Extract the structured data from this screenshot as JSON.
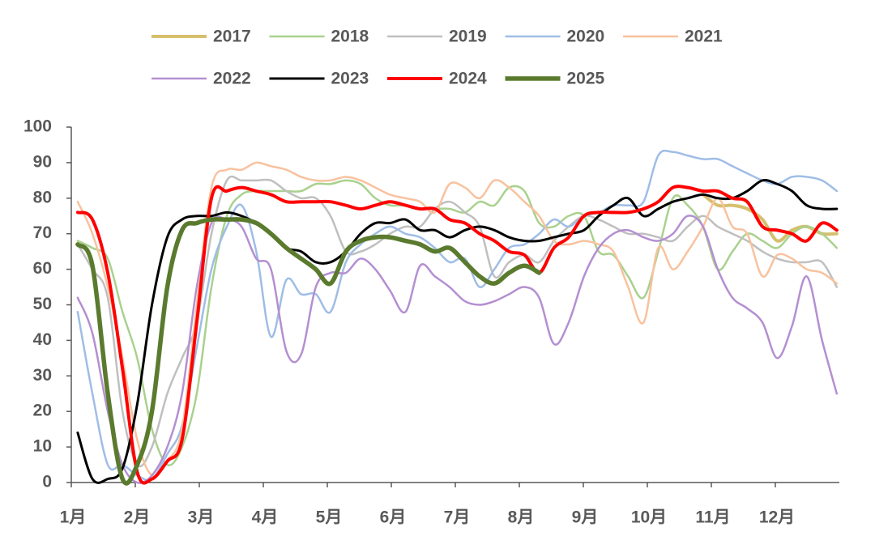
{
  "chart_data": {
    "type": "line",
    "x": [
      1.1,
      1.33,
      1.57,
      1.8,
      2.03,
      2.26,
      2.5,
      2.73,
      2.96,
      3.19,
      3.43,
      3.66,
      3.89,
      4.12,
      4.36,
      4.59,
      4.82,
      5.05,
      5.29,
      5.52,
      5.75,
      5.98,
      6.22,
      6.45,
      6.68,
      6.91,
      7.15,
      7.38,
      7.61,
      7.84,
      8.08,
      8.31,
      8.54,
      8.77,
      9.01,
      9.24,
      9.47,
      9.7,
      9.94,
      10.17,
      10.4,
      10.63,
      10.87,
      11.1,
      11.33,
      11.56,
      11.8,
      12.03,
      12.26,
      12.49,
      12.73,
      12.96
    ],
    "xlim": [
      1,
      13
    ],
    "xticks": [
      {
        "value": 1,
        "label": "1月"
      },
      {
        "value": 2,
        "label": "2月"
      },
      {
        "value": 3,
        "label": "3月"
      },
      {
        "value": 4,
        "label": "4月"
      },
      {
        "value": 5,
        "label": "5月"
      },
      {
        "value": 6,
        "label": "6月"
      },
      {
        "value": 7,
        "label": "7月"
      },
      {
        "value": 8,
        "label": "8月"
      },
      {
        "value": 9,
        "label": "9月"
      },
      {
        "value": 10,
        "label": "10月"
      },
      {
        "value": 11,
        "label": "11月"
      },
      {
        "value": 12,
        "label": "12月"
      }
    ],
    "ylim": [
      0,
      100
    ],
    "yticks": [
      0,
      10,
      20,
      30,
      40,
      50,
      60,
      70,
      80,
      90,
      100
    ],
    "grid": false,
    "legend": "top",
    "series": [
      {
        "name": "2017",
        "color": "#d6bf6d",
        "width": 4,
        "values": [
          null,
          null,
          null,
          null,
          null,
          null,
          null,
          null,
          null,
          null,
          null,
          null,
          null,
          null,
          null,
          null,
          null,
          null,
          null,
          null,
          null,
          null,
          null,
          null,
          null,
          null,
          null,
          null,
          null,
          null,
          null,
          null,
          null,
          null,
          null,
          null,
          null,
          null,
          null,
          null,
          null,
          null,
          81,
          78,
          78,
          77,
          74,
          68,
          71,
          72,
          70,
          70
        ]
      },
      {
        "name": "2018",
        "color": "#a9d18e",
        "width": 2.5,
        "values": [
          68,
          66,
          63,
          48,
          35,
          15,
          5,
          10,
          25,
          55,
          75,
          81,
          82,
          82,
          82,
          82,
          84,
          84,
          85,
          84,
          80,
          78,
          78,
          77,
          77,
          77,
          76,
          79,
          78,
          83,
          82,
          73,
          72,
          75,
          75,
          65,
          64,
          58,
          52,
          65,
          80,
          78,
          72,
          60,
          65,
          70,
          68,
          66,
          70,
          72,
          70,
          66
        ]
      },
      {
        "name": "2019",
        "color": "#bfbfbf",
        "width": 2.5,
        "values": [
          67,
          60,
          52,
          20,
          5,
          10,
          25,
          35,
          45,
          70,
          85,
          85,
          85,
          85,
          82,
          80,
          80,
          75,
          65,
          65,
          67,
          70,
          72,
          72,
          77,
          79,
          76,
          72,
          58,
          62,
          64,
          62,
          68,
          72,
          75,
          74,
          72,
          70,
          70,
          69,
          68,
          72,
          75,
          72,
          70,
          68,
          65,
          63,
          62,
          62,
          62,
          55
        ]
      },
      {
        "name": "2020",
        "color": "#9fbde6",
        "width": 2.5,
        "values": [
          48,
          25,
          5,
          5,
          2,
          1,
          8,
          16,
          38,
          60,
          72,
          78,
          65,
          41,
          57,
          53,
          53,
          48,
          62,
          67,
          70,
          72,
          70,
          69,
          66,
          62,
          63,
          55,
          60,
          66,
          67,
          70,
          74,
          72,
          75,
          76,
          78,
          78,
          79,
          92,
          93,
          92,
          91,
          91,
          89,
          87,
          85,
          84,
          86,
          86,
          85,
          82
        ]
      },
      {
        "name": "2021",
        "color": "#f8c29e",
        "width": 2.5,
        "values": [
          79,
          70,
          55,
          35,
          12,
          2,
          6,
          15,
          50,
          83,
          88,
          88,
          90,
          89,
          88,
          86,
          85,
          85,
          86,
          85,
          83,
          81,
          80,
          79,
          76,
          84,
          83,
          80,
          85,
          83,
          79,
          75,
          68,
          67,
          68,
          67,
          65,
          55,
          45,
          66,
          60,
          65,
          72,
          80,
          72,
          70,
          58,
          64,
          63,
          60,
          59,
          56
        ]
      },
      {
        "name": "2022",
        "color": "#b48fd1",
        "width": 2.5,
        "values": [
          52,
          42,
          20,
          5,
          0,
          2,
          10,
          25,
          55,
          73,
          74,
          72,
          63,
          60,
          37,
          36,
          55,
          59,
          59,
          63,
          60,
          54,
          48,
          61,
          58,
          55,
          51,
          50,
          51,
          53,
          55,
          52,
          39,
          45,
          58,
          66,
          70,
          71,
          69,
          68,
          70,
          75,
          72,
          60,
          52,
          49,
          45,
          35,
          44,
          58,
          40,
          25
        ]
      },
      {
        "name": "2023",
        "color": "#000000",
        "width": 3,
        "values": [
          14,
          1,
          1,
          4,
          22,
          50,
          69,
          74,
          75,
          75,
          76,
          75,
          73,
          70,
          66,
          65,
          62,
          62,
          65,
          70,
          73,
          73,
          74,
          71,
          71,
          69,
          71,
          72,
          71,
          69,
          68,
          68,
          69,
          70,
          71,
          75,
          78,
          80,
          75,
          77,
          79,
          80,
          81,
          80,
          80,
          82,
          85,
          84,
          82,
          78,
          77,
          77
        ]
      },
      {
        "name": "2024",
        "color": "#ff0000",
        "width": 4,
        "values": [
          76,
          74,
          59,
          32,
          3,
          1,
          6,
          12,
          45,
          80,
          82,
          83,
          82,
          81,
          79,
          79,
          79,
          79,
          78,
          77,
          78,
          79,
          78,
          77,
          77,
          74,
          73,
          70,
          68,
          65,
          64,
          59,
          66,
          69,
          75,
          76,
          76,
          76,
          77,
          79,
          83,
          83,
          82,
          82,
          80,
          79,
          72,
          71,
          70,
          68,
          73,
          71
        ]
      },
      {
        "name": "2025",
        "color": "#5a7a2e",
        "width": 5.5,
        "values": [
          67,
          61,
          25,
          1,
          5,
          20,
          55,
          71,
          73,
          74,
          74,
          74,
          73,
          70,
          66,
          63,
          60,
          56,
          65,
          68,
          69,
          69,
          68,
          67,
          65,
          66,
          62,
          58,
          56,
          59,
          61,
          59,
          null,
          null,
          null,
          null,
          null,
          null,
          null,
          null,
          null,
          null,
          null,
          null,
          null,
          null,
          null,
          null,
          null,
          null,
          null,
          null
        ]
      }
    ]
  }
}
